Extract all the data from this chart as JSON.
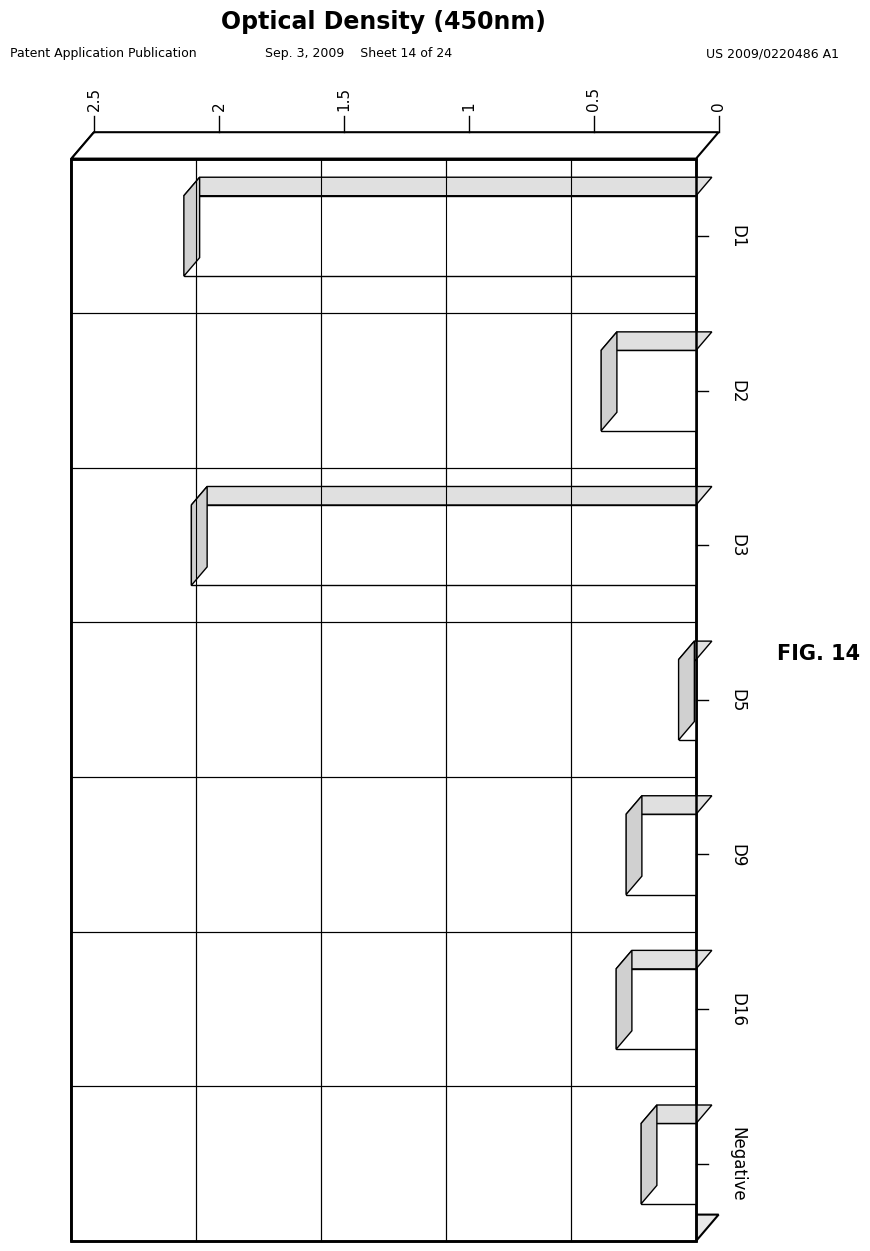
{
  "title": "Optical Density (450nm)",
  "header_left": "Patent Application Publication",
  "header_mid": "Sep. 3, 2009    Sheet 14 of 24",
  "header_right": "US 2009/0220486 A1",
  "fig_label": "FIG. 14",
  "categories": [
    "D1",
    "D2",
    "D3",
    "D5",
    "D9",
    "D16",
    "Negative"
  ],
  "values": [
    2.05,
    0.38,
    2.02,
    0.07,
    0.28,
    0.32,
    0.22
  ],
  "x_max": 2.5,
  "x_min": 0,
  "xticks": [
    2.5,
    2.0,
    1.5,
    1.0,
    0.5,
    0
  ],
  "xtick_labels": [
    "2.5",
    "2",
    "1.5",
    "1",
    "0.5",
    "0"
  ],
  "bg_color": "#ffffff",
  "dx3d": 0.022,
  "dy3d": 0.02
}
